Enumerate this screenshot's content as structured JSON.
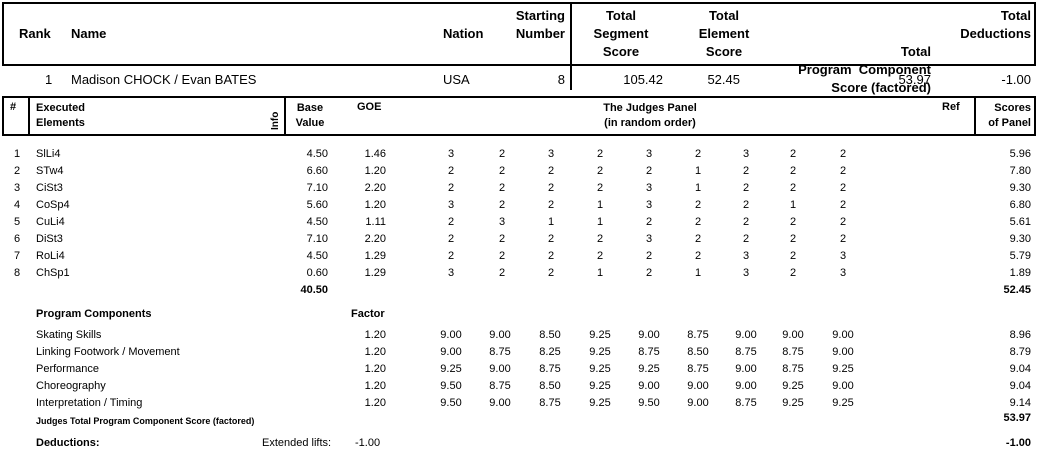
{
  "summary": {
    "headers": {
      "rank": "Rank",
      "name": "Name",
      "nation": "Nation",
      "starting_number": [
        "Starting",
        "Number"
      ],
      "total_segment_score": [
        "Total",
        "Segment",
        "Score"
      ],
      "total_element_score": [
        "Total",
        "Element",
        "Score"
      ],
      "total_pcs": [
        "Total",
        "Program  Component",
        "Score (factored)"
      ],
      "total_deductions": [
        "Total",
        "Deductions"
      ]
    },
    "rank": "1",
    "name": "Madison CHOCK / Evan BATES",
    "nation": "USA",
    "starting_number": "8",
    "total_segment_score": "105.42",
    "total_element_score": "52.45",
    "total_pcs": "53.97",
    "total_deductions": "-1.00"
  },
  "elements_header": {
    "num": "#",
    "executed": [
      "Executed",
      "Elements"
    ],
    "info": "Info",
    "base": [
      "Base",
      "Value"
    ],
    "goe": "GOE",
    "panel": [
      "The Judges Panel",
      "(in random order)"
    ],
    "ref": "Ref",
    "scores": [
      "Scores",
      "of Panel"
    ]
  },
  "elements": [
    {
      "n": "1",
      "name": "SlLi4",
      "base": "4.50",
      "goe": "1.46",
      "judges": [
        "3",
        "2",
        "3",
        "2",
        "3",
        "2",
        "3",
        "2",
        "2"
      ],
      "score": "5.96"
    },
    {
      "n": "2",
      "name": "STw4",
      "base": "6.60",
      "goe": "1.20",
      "judges": [
        "2",
        "2",
        "2",
        "2",
        "2",
        "1",
        "2",
        "2",
        "2"
      ],
      "score": "7.80"
    },
    {
      "n": "3",
      "name": "CiSt3",
      "base": "7.10",
      "goe": "2.20",
      "judges": [
        "2",
        "2",
        "2",
        "2",
        "3",
        "1",
        "2",
        "2",
        "2"
      ],
      "score": "9.30"
    },
    {
      "n": "4",
      "name": "CoSp4",
      "base": "5.60",
      "goe": "1.20",
      "judges": [
        "3",
        "2",
        "2",
        "1",
        "3",
        "2",
        "2",
        "1",
        "2"
      ],
      "score": "6.80"
    },
    {
      "n": "5",
      "name": "CuLi4",
      "base": "4.50",
      "goe": "1.11",
      "judges": [
        "2",
        "3",
        "1",
        "1",
        "2",
        "2",
        "2",
        "2",
        "2"
      ],
      "score": "5.61"
    },
    {
      "n": "6",
      "name": "DiSt3",
      "base": "7.10",
      "goe": "2.20",
      "judges": [
        "2",
        "2",
        "2",
        "2",
        "3",
        "2",
        "2",
        "2",
        "2"
      ],
      "score": "9.30"
    },
    {
      "n": "7",
      "name": "RoLi4",
      "base": "4.50",
      "goe": "1.29",
      "judges": [
        "2",
        "2",
        "2",
        "2",
        "2",
        "2",
        "3",
        "2",
        "3"
      ],
      "score": "5.79"
    },
    {
      "n": "8",
      "name": "ChSp1",
      "base": "0.60",
      "goe": "1.29",
      "judges": [
        "3",
        "2",
        "2",
        "1",
        "2",
        "1",
        "3",
        "2",
        "3"
      ],
      "score": "1.89"
    }
  ],
  "elements_total_base": "40.50",
  "elements_total_score": "52.45",
  "pc_header": {
    "label": "Program Components",
    "factor": "Factor"
  },
  "components": [
    {
      "name": "Skating Skills",
      "factor": "1.20",
      "judges": [
        "9.00",
        "9.00",
        "8.50",
        "9.25",
        "9.00",
        "8.75",
        "9.00",
        "9.00",
        "9.00"
      ],
      "score": "8.96"
    },
    {
      "name": "Linking Footwork / Movement",
      "factor": "1.20",
      "judges": [
        "9.00",
        "8.75",
        "8.25",
        "9.25",
        "8.75",
        "8.50",
        "8.75",
        "8.75",
        "9.00"
      ],
      "score": "8.79"
    },
    {
      "name": "Performance",
      "factor": "1.20",
      "judges": [
        "9.25",
        "9.00",
        "8.75",
        "9.25",
        "9.25",
        "8.75",
        "9.00",
        "8.75",
        "9.25"
      ],
      "score": "9.04"
    },
    {
      "name": "Choreography",
      "factor": "1.20",
      "judges": [
        "9.50",
        "8.75",
        "8.50",
        "9.25",
        "9.00",
        "9.00",
        "9.00",
        "9.25",
        "9.00"
      ],
      "score": "9.04"
    },
    {
      "name": "Interpretation / Timing",
      "factor": "1.20",
      "judges": [
        "9.50",
        "9.00",
        "8.75",
        "9.25",
        "9.50",
        "9.00",
        "8.75",
        "9.25",
        "9.25"
      ],
      "score": "9.14"
    }
  ],
  "pcs_total_label": "Judges Total Program Component Score (factored)",
  "pcs_total": "53.97",
  "deductions": {
    "label": "Deductions:",
    "type": "Extended lifts:",
    "value": "-1.00",
    "total": "-1.00"
  }
}
